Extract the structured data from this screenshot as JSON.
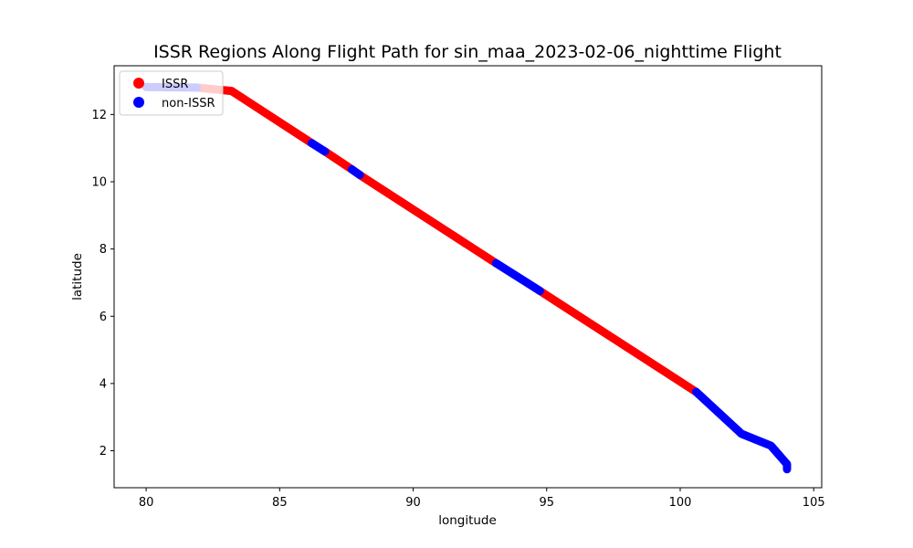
{
  "chart_data": {
    "type": "scatter",
    "title": "ISSR Regions Along Flight Path for sin_maa_2023-02-06_nighttime Flight",
    "xlabel": "longitude",
    "ylabel": "latitude",
    "xlim": [
      78.8,
      105.3
    ],
    "ylim": [
      0.9,
      13.45
    ],
    "xticks": [
      80,
      85,
      90,
      95,
      100,
      105
    ],
    "yticks": [
      2,
      4,
      6,
      8,
      10,
      12
    ],
    "grid": false,
    "legend_position": "top-left",
    "series": [
      {
        "name": "ISSR",
        "color": "#ff0000",
        "segments": [
          [
            [
              81.9,
              12.8
            ],
            [
              83.2,
              12.7
            ],
            [
              86.2,
              11.15
            ]
          ],
          [
            [
              86.7,
              10.9
            ],
            [
              87.7,
              10.37
            ]
          ],
          [
            [
              88.0,
              10.2
            ],
            [
              93.1,
              7.58
            ]
          ],
          [
            [
              94.75,
              6.75
            ],
            [
              100.6,
              3.75
            ]
          ]
        ]
      },
      {
        "name": "non-ISSR",
        "color": "#0000ff",
        "segments": [
          [
            [
              80.0,
              12.82
            ],
            [
              81.9,
              12.8
            ]
          ],
          [
            [
              86.2,
              11.15
            ],
            [
              86.7,
              10.9
            ]
          ],
          [
            [
              87.7,
              10.37
            ],
            [
              88.0,
              10.2
            ]
          ],
          [
            [
              93.1,
              7.58
            ],
            [
              94.75,
              6.75
            ]
          ],
          [
            [
              100.6,
              3.75
            ],
            [
              102.3,
              2.5
            ],
            [
              103.4,
              2.15
            ],
            [
              104.0,
              1.6
            ],
            [
              104.0,
              1.45
            ]
          ]
        ]
      }
    ]
  }
}
